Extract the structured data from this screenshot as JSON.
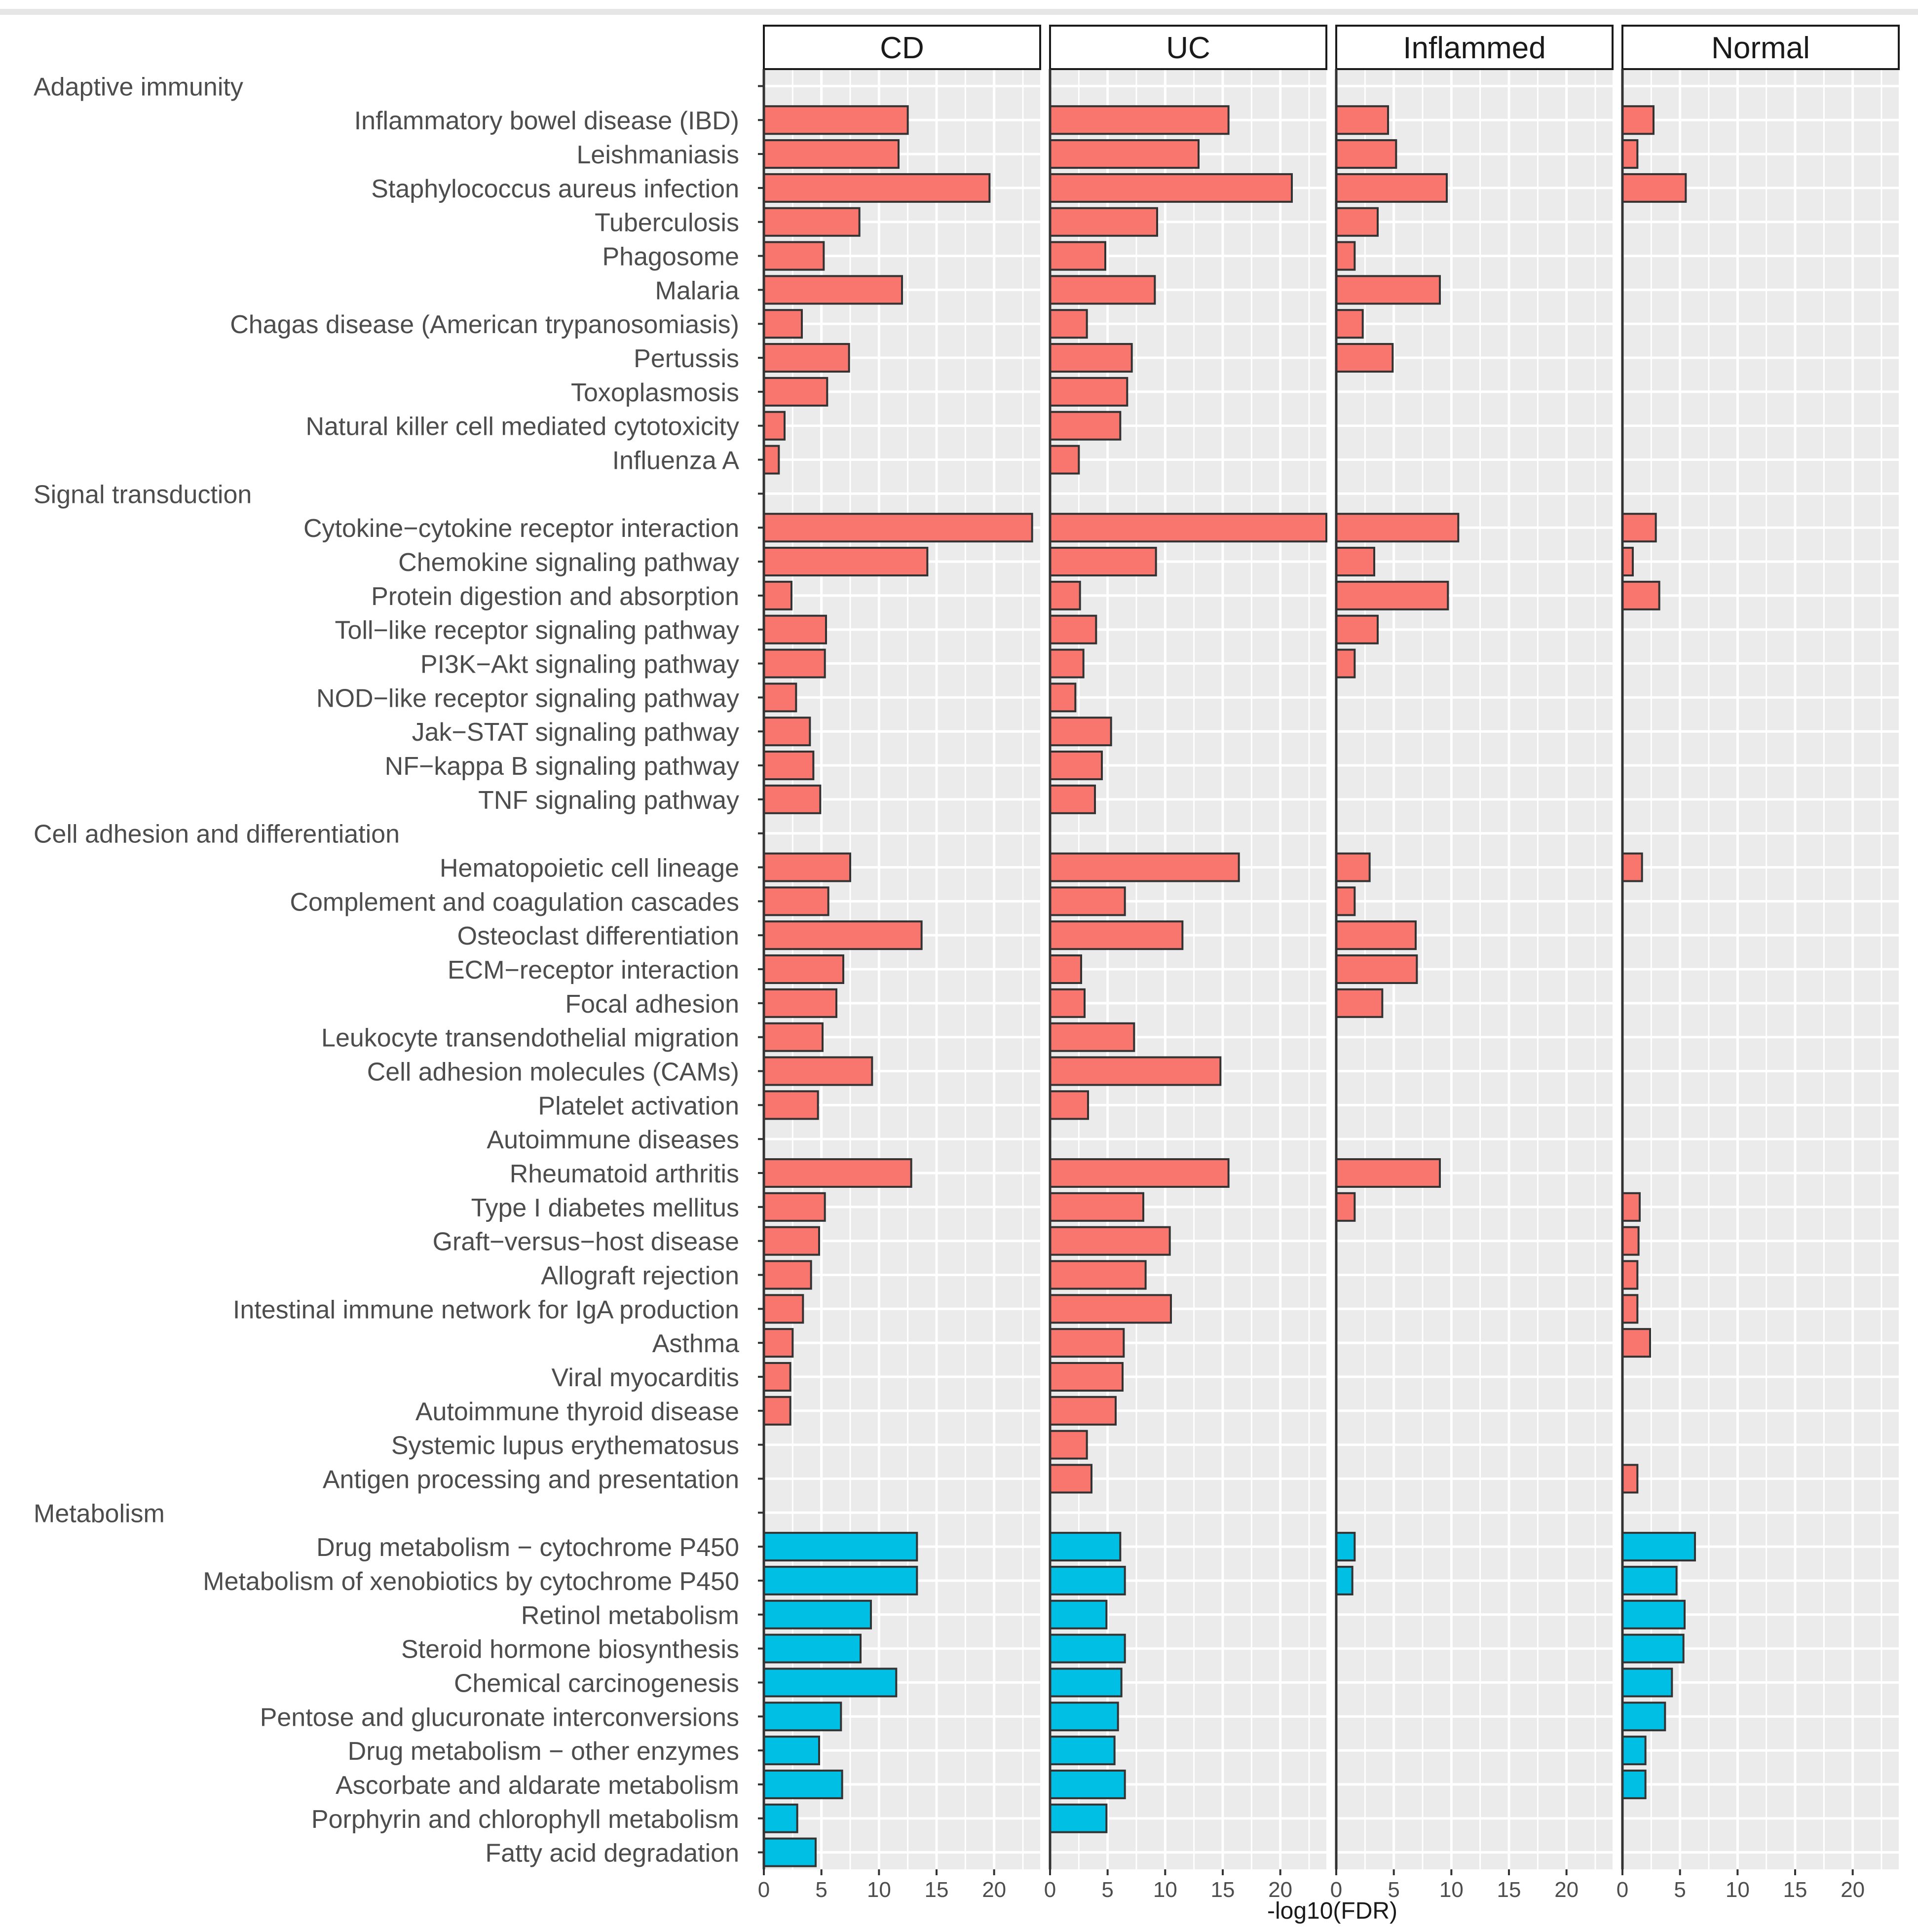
{
  "chart_data": {
    "type": "bar",
    "orientation": "horizontal",
    "xlabel": "-log10(FDR)",
    "xlim": [
      0,
      24
    ],
    "xticks": [
      "0",
      "5",
      "10",
      "15",
      "20"
    ],
    "panels": [
      "CD",
      "UC",
      "Inflammed",
      "Normal"
    ],
    "colors": {
      "immune": "#f8766d",
      "metabolism": "#00bfe4",
      "panel_bg": "#ebebeb",
      "grid": "#ffffff"
    },
    "rows": [
      {
        "kind": "group",
        "label": "Adaptive immunity"
      },
      {
        "kind": "term",
        "label": "Inflammatory bowel disease (IBD)",
        "cat": "immune",
        "values": [
          12.5,
          15.5,
          4.5,
          2.7
        ]
      },
      {
        "kind": "term",
        "label": "Leishmaniasis",
        "cat": "immune",
        "values": [
          11.7,
          12.9,
          5.2,
          1.3
        ]
      },
      {
        "kind": "term",
        "label": "Staphylococcus aureus infection",
        "cat": "immune",
        "values": [
          19.6,
          21.0,
          9.6,
          5.5
        ]
      },
      {
        "kind": "term",
        "label": "Tuberculosis",
        "cat": "immune",
        "values": [
          8.3,
          9.3,
          3.6,
          null
        ]
      },
      {
        "kind": "term",
        "label": "Phagosome",
        "cat": "immune",
        "values": [
          5.2,
          4.8,
          1.6,
          null
        ]
      },
      {
        "kind": "term",
        "label": "Malaria",
        "cat": "immune",
        "values": [
          12.0,
          9.1,
          9.0,
          null
        ]
      },
      {
        "kind": "term",
        "label": "Chagas disease (American trypanosomiasis)",
        "cat": "immune",
        "values": [
          3.3,
          3.2,
          2.3,
          null
        ]
      },
      {
        "kind": "term",
        "label": "Pertussis",
        "cat": "immune",
        "values": [
          7.4,
          7.1,
          4.9,
          null
        ]
      },
      {
        "kind": "term",
        "label": "Toxoplasmosis",
        "cat": "immune",
        "values": [
          5.5,
          6.7,
          null,
          null
        ]
      },
      {
        "kind": "term",
        "label": "Natural killer cell mediated cytotoxicity",
        "cat": "immune",
        "values": [
          1.8,
          6.1,
          null,
          null
        ]
      },
      {
        "kind": "term",
        "label": "Influenza A",
        "cat": "immune",
        "values": [
          1.3,
          2.5,
          null,
          null
        ]
      },
      {
        "kind": "group",
        "label": "Signal transduction"
      },
      {
        "kind": "term",
        "label": "Cytokine−cytokine receptor interaction",
        "cat": "immune",
        "values": [
          23.3,
          24.0,
          10.6,
          2.9
        ]
      },
      {
        "kind": "term",
        "label": "Chemokine signaling pathway",
        "cat": "immune",
        "values": [
          14.2,
          9.2,
          3.3,
          0.9
        ]
      },
      {
        "kind": "term",
        "label": "Protein digestion and absorption",
        "cat": "immune",
        "values": [
          2.4,
          2.6,
          9.7,
          3.2
        ]
      },
      {
        "kind": "term",
        "label": "Toll−like receptor signaling pathway",
        "cat": "immune",
        "values": [
          5.4,
          4.0,
          3.6,
          null
        ]
      },
      {
        "kind": "term",
        "label": "PI3K−Akt signaling pathway",
        "cat": "immune",
        "values": [
          5.3,
          2.9,
          1.6,
          null
        ]
      },
      {
        "kind": "term",
        "label": "NOD−like receptor signaling pathway",
        "cat": "immune",
        "values": [
          2.8,
          2.2,
          null,
          null
        ]
      },
      {
        "kind": "term",
        "label": "Jak−STAT signaling pathway",
        "cat": "immune",
        "values": [
          4.0,
          5.3,
          null,
          null
        ]
      },
      {
        "kind": "term",
        "label": "NF−kappa B signaling pathway",
        "cat": "immune",
        "values": [
          4.3,
          4.5,
          null,
          null
        ]
      },
      {
        "kind": "term",
        "label": "TNF signaling pathway",
        "cat": "immune",
        "values": [
          4.9,
          3.9,
          null,
          null
        ]
      },
      {
        "kind": "group",
        "label": "Cell adhesion and differentiation"
      },
      {
        "kind": "term",
        "label": "Hematopoietic cell lineage",
        "cat": "immune",
        "values": [
          7.5,
          16.4,
          2.9,
          1.7
        ]
      },
      {
        "kind": "term",
        "label": "Complement and coagulation cascades",
        "cat": "immune",
        "values": [
          5.6,
          6.5,
          1.6,
          null
        ]
      },
      {
        "kind": "term",
        "label": "Osteoclast differentiation",
        "cat": "immune",
        "values": [
          13.7,
          11.5,
          6.9,
          null
        ]
      },
      {
        "kind": "term",
        "label": "ECM−receptor interaction",
        "cat": "immune",
        "values": [
          6.9,
          2.7,
          7.0,
          null
        ]
      },
      {
        "kind": "term",
        "label": "Focal adhesion",
        "cat": "immune",
        "values": [
          6.3,
          3.0,
          4.0,
          null
        ]
      },
      {
        "kind": "term",
        "label": "Leukocyte transendothelial migration",
        "cat": "immune",
        "values": [
          5.1,
          7.3,
          null,
          null
        ]
      },
      {
        "kind": "term",
        "label": "Cell adhesion molecules (CAMs)",
        "cat": "immune",
        "values": [
          9.4,
          14.8,
          null,
          null
        ]
      },
      {
        "kind": "term",
        "label": "Platelet activation",
        "cat": "immune",
        "values": [
          4.7,
          3.3,
          null,
          null
        ]
      },
      {
        "kind": "group",
        "label": "Autoimmune diseases"
      },
      {
        "kind": "term",
        "label": "Rheumatoid arthritis",
        "cat": "immune",
        "values": [
          12.8,
          15.5,
          9.0,
          null
        ]
      },
      {
        "kind": "term",
        "label": "Type I diabetes mellitus",
        "cat": "immune",
        "values": [
          5.3,
          8.1,
          1.6,
          1.5
        ]
      },
      {
        "kind": "term",
        "label": "Graft−versus−host disease",
        "cat": "immune",
        "values": [
          4.8,
          10.4,
          null,
          1.4
        ]
      },
      {
        "kind": "term",
        "label": "Allograft rejection",
        "cat": "immune",
        "values": [
          4.1,
          8.3,
          null,
          1.3
        ]
      },
      {
        "kind": "term",
        "label": "Intestinal immune network for IgA production",
        "cat": "immune",
        "values": [
          3.4,
          10.5,
          null,
          1.3
        ]
      },
      {
        "kind": "term",
        "label": "Asthma",
        "cat": "immune",
        "values": [
          2.5,
          6.4,
          null,
          2.4
        ]
      },
      {
        "kind": "term",
        "label": "Viral myocarditis",
        "cat": "immune",
        "values": [
          2.3,
          6.3,
          null,
          null
        ]
      },
      {
        "kind": "term",
        "label": "Autoimmune thyroid disease",
        "cat": "immune",
        "values": [
          2.3,
          5.7,
          null,
          null
        ]
      },
      {
        "kind": "term",
        "label": "Systemic lupus erythematosus",
        "cat": "immune",
        "values": [
          null,
          3.2,
          null,
          null
        ]
      },
      {
        "kind": "term",
        "label": "Antigen processing and presentation",
        "cat": "immune",
        "values": [
          null,
          3.6,
          null,
          1.3
        ]
      },
      {
        "kind": "group",
        "label": "Metabolism"
      },
      {
        "kind": "term",
        "label": "Drug metabolism − cytochrome P450",
        "cat": "metabolism",
        "values": [
          13.3,
          6.1,
          1.6,
          6.3
        ]
      },
      {
        "kind": "term",
        "label": "Metabolism of xenobiotics by cytochrome P450",
        "cat": "metabolism",
        "values": [
          13.3,
          6.5,
          1.4,
          4.7
        ]
      },
      {
        "kind": "term",
        "label": "Retinol metabolism",
        "cat": "metabolism",
        "values": [
          9.3,
          4.9,
          null,
          5.4
        ]
      },
      {
        "kind": "term",
        "label": "Steroid hormone biosynthesis",
        "cat": "metabolism",
        "values": [
          8.4,
          6.5,
          null,
          5.3
        ]
      },
      {
        "kind": "term",
        "label": "Chemical carcinogenesis",
        "cat": "metabolism",
        "values": [
          11.5,
          6.2,
          null,
          4.3
        ]
      },
      {
        "kind": "term",
        "label": "Pentose and glucuronate interconversions",
        "cat": "metabolism",
        "values": [
          6.7,
          5.9,
          null,
          3.7
        ]
      },
      {
        "kind": "term",
        "label": "Drug metabolism − other enzymes",
        "cat": "metabolism",
        "values": [
          4.8,
          5.6,
          null,
          2.0
        ]
      },
      {
        "kind": "term",
        "label": "Ascorbate and aldarate metabolism",
        "cat": "metabolism",
        "values": [
          6.8,
          6.5,
          null,
          2.0
        ]
      },
      {
        "kind": "term",
        "label": "Porphyrin and chlorophyll metabolism",
        "cat": "metabolism",
        "values": [
          2.9,
          4.9,
          null,
          null
        ]
      },
      {
        "kind": "term",
        "label": "Fatty acid degradation",
        "cat": "metabolism",
        "values": [
          4.5,
          null,
          null,
          null
        ]
      }
    ]
  }
}
